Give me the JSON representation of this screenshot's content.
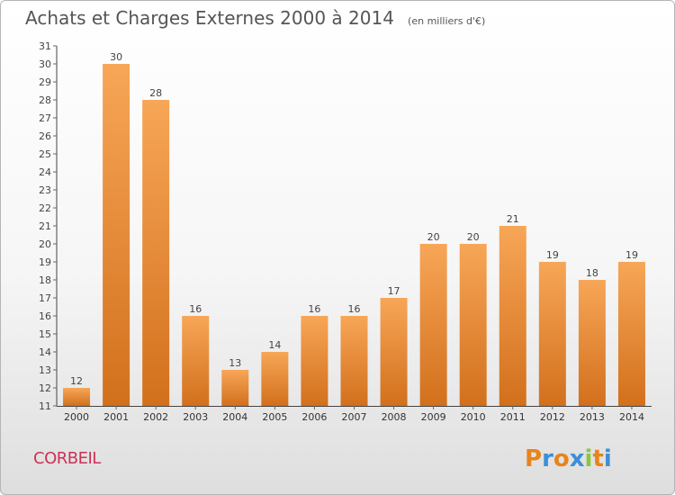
{
  "title": "Achats et Charges Externes 2000 à 2014",
  "unit": "(en milliers d'€)",
  "place": "CORBEIL",
  "brand": {
    "letters": [
      "P",
      "r",
      "o",
      "x",
      "i",
      "t",
      "i"
    ],
    "colors": [
      "#e8841c",
      "#3b8fd8",
      "#e8841c",
      "#3b8fd8",
      "#8cc63f",
      "#e8841c",
      "#3b8fd8"
    ]
  },
  "colors": {
    "bar_light": "#f7a657",
    "bar_dark": "#d2701c",
    "axis": "#444444",
    "grid_tick": "#666666"
  },
  "chart_data": {
    "type": "bar",
    "categories": [
      "2000",
      "2001",
      "2002",
      "2003",
      "2004",
      "2005",
      "2006",
      "2007",
      "2008",
      "2009",
      "2010",
      "2011",
      "2012",
      "2013",
      "2014"
    ],
    "values": [
      12,
      30,
      28,
      16,
      13,
      14,
      16,
      16,
      17,
      20,
      20,
      21,
      19,
      18,
      19
    ],
    "title": "Achats et Charges Externes 2000 à 2014",
    "xlabel": "",
    "ylabel": "",
    "ylim": [
      11,
      31
    ],
    "yticks": [
      11,
      12,
      13,
      14,
      15,
      16,
      17,
      18,
      19,
      20,
      21,
      22,
      23,
      24,
      25,
      26,
      27,
      28,
      29,
      30,
      31
    ],
    "grid": false,
    "data_labels": true
  }
}
